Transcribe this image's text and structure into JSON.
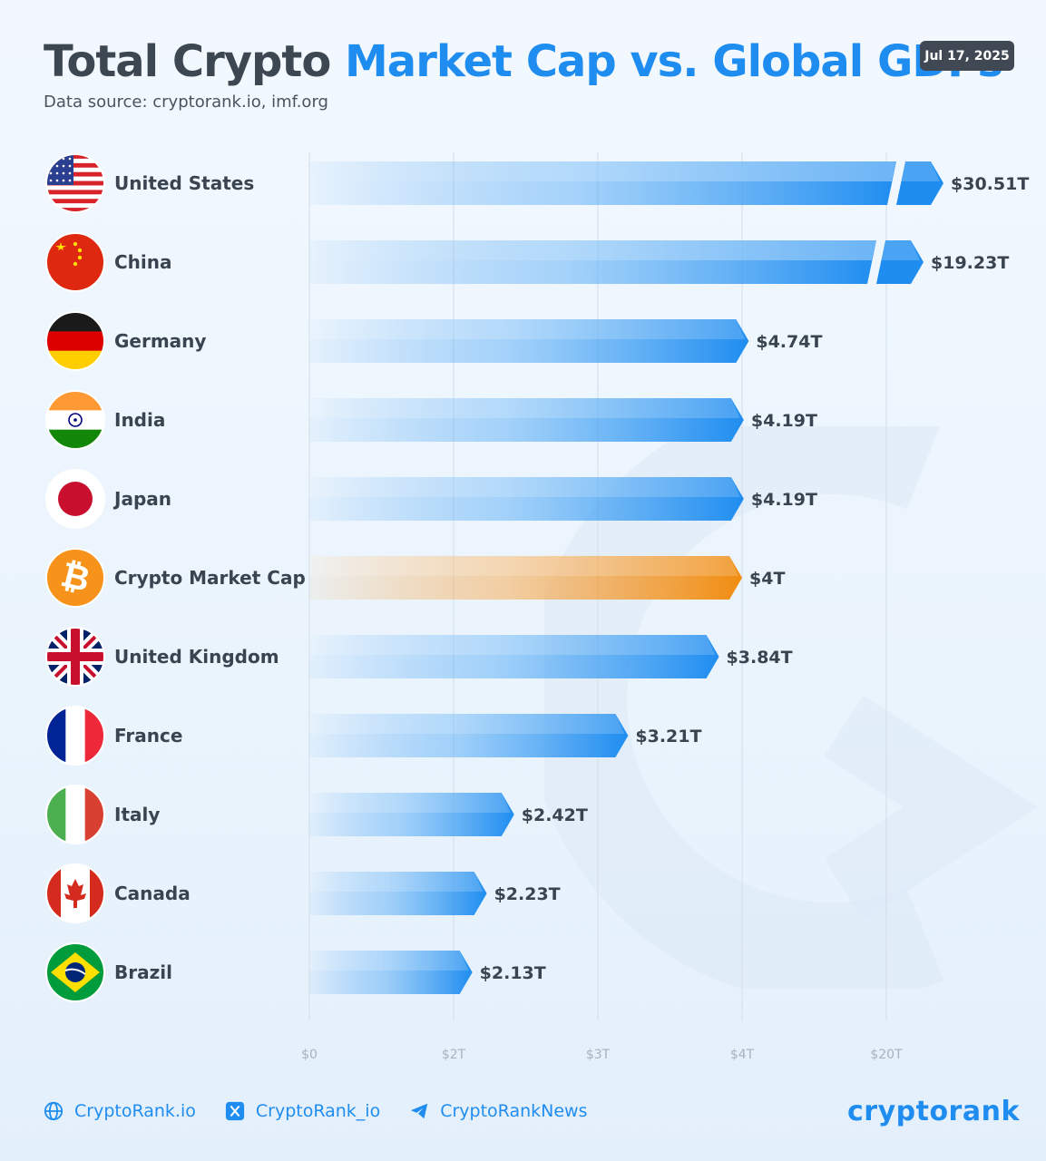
{
  "header": {
    "title_part1": "Total Crypto",
    "title_part2": "Market Cap vs. Global GDPs",
    "source": "Data source: cryptorank.io, imf.org",
    "date": "Jul 17, 2025"
  },
  "colors": {
    "accent": "#1f8df0",
    "crypto": "#f7931a",
    "text": "#3a4450"
  },
  "chart_data": {
    "type": "bar",
    "orientation": "horizontal",
    "categories": [
      "United States",
      "China",
      "Germany",
      "India",
      "Japan",
      "Crypto Market Cap",
      "United Kingdom",
      "France",
      "Italy",
      "Canada",
      "Brazil"
    ],
    "values": [
      30.51,
      19.23,
      4.74,
      4.19,
      4.19,
      4,
      3.84,
      3.21,
      2.42,
      2.23,
      2.13
    ],
    "value_labels": [
      "$30.51T",
      "$19.23T",
      "$4.74T",
      "$4.19T",
      "$4.19T",
      "$4T",
      "$3.84T",
      "$3.21T",
      "$2.42T",
      "$2.23T",
      "$2.13T"
    ],
    "highlight": "Crypto Market Cap",
    "icons": [
      "us-flag",
      "china-flag",
      "germany-flag",
      "india-flag",
      "japan-flag",
      "bitcoin-logo",
      "uk-flag",
      "france-flag",
      "italy-flag",
      "canada-flag",
      "brazil-flag"
    ],
    "broken_bars": [
      "United States",
      "China"
    ],
    "x_ticks": [
      0,
      2,
      3,
      4,
      20
    ],
    "x_tick_labels": [
      "$0",
      "$2T",
      "$3T",
      "$4T",
      "$20T"
    ],
    "x_scale": "piecewise-linear",
    "grid": true
  },
  "footer": {
    "website": "CryptoRank.io",
    "x_handle": "CryptoRank_io",
    "telegram": "CryptoRankNews",
    "brand": "cryptorank"
  }
}
